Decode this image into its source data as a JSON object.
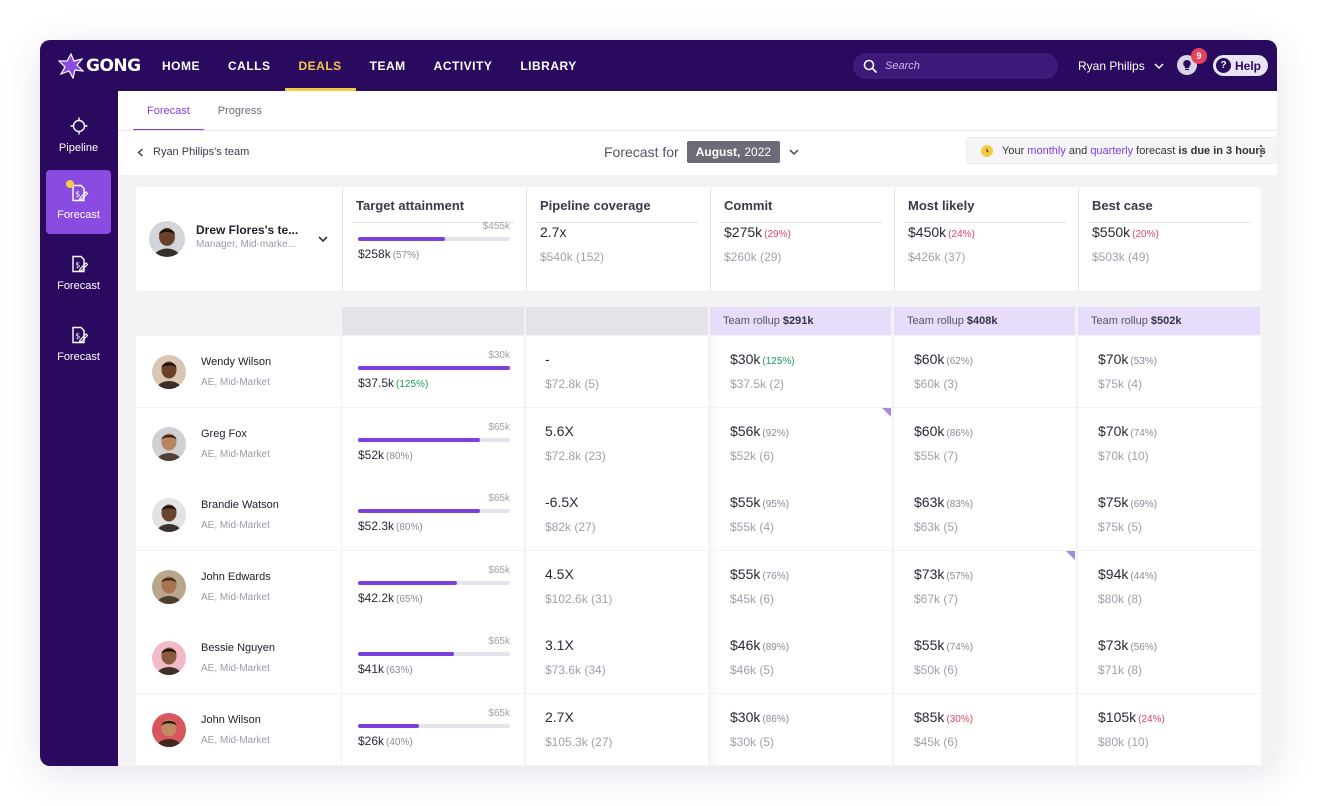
{
  "app": {
    "logo_text": "GONG"
  },
  "nav": {
    "items": [
      {
        "label": "HOME",
        "active": false
      },
      {
        "label": "CALLS",
        "active": false
      },
      {
        "label": "DEALS",
        "active": true
      },
      {
        "label": "TEAM",
        "active": false
      },
      {
        "label": "ACTIVITY",
        "active": false
      },
      {
        "label": "LIBRARY",
        "active": false
      }
    ],
    "search_placeholder": "Search",
    "user_name": "Ryan Philips",
    "notification_count": "9",
    "help_label": "Help"
  },
  "sidebar": {
    "items": [
      {
        "label": "Pipeline",
        "icon": "crosshair-icon",
        "active": false
      },
      {
        "label": "Forecast",
        "icon": "forecast-icon",
        "active": true
      },
      {
        "label": "Forecast",
        "icon": "forecast-icon",
        "active": false
      },
      {
        "label": "Forecast",
        "icon": "forecast-icon",
        "active": false
      }
    ]
  },
  "tabs": [
    {
      "label": "Forecast",
      "active": true
    },
    {
      "label": "Progress",
      "active": false
    }
  ],
  "header": {
    "back_label": "Ryan Philips's team",
    "forecast_for_label": "Forecast for",
    "period_month": "August,",
    "period_year": "2022",
    "notice": {
      "prefix": "Your",
      "monthly": "monthly",
      "and": "and",
      "quarterly": "quarterly",
      "middle": "forecast",
      "due": "is due in 3 hours"
    }
  },
  "columns": {
    "target": "Target attainment",
    "pipeline": "Pipeline coverage",
    "commit": "Commit",
    "likely": "Most likely",
    "best": "Best case"
  },
  "manager": {
    "name": "Drew Flores's te...",
    "role": "Manager, Mid-marke...",
    "target_label": "$455k",
    "target_value": "$258k",
    "target_pct": "(57%)",
    "target_fill": 0.57,
    "pipeline_value": "2.7x",
    "pipeline_sub": "$540k (152)",
    "commit_value": "$275k",
    "commit_pct": "(29%)",
    "commit_sub": "$260k (29)",
    "likely_value": "$450k",
    "likely_pct": "(24%)",
    "likely_sub": "$426k (37)",
    "best_value": "$550k",
    "best_pct": "(20%)",
    "best_sub": "$503k (49)"
  },
  "rollup": {
    "label": "Team rollup",
    "commit": "$291k",
    "likely": "$408k",
    "best": "$502k"
  },
  "rows": [
    {
      "name": "Wendy Wilson",
      "role": "AE, Mid-Market",
      "target": "$30k",
      "value": "$37.5k",
      "pct": "(125%)",
      "pct_color": "green",
      "fill": 1.0,
      "pipeline": "-",
      "pipeline_sub": "$72.8k (5)",
      "commit": "$30k",
      "commit_pct": "(125%)",
      "commit_pct_color": "green",
      "commit_sub": "$37.5k (2)",
      "likely": "$60k",
      "likely_pct": "(62%)",
      "likely_pct_color": "",
      "likely_sub": "$60k (3)",
      "best": "$70k",
      "best_pct": "(53%)",
      "best_pct_color": "",
      "best_sub": "$75k (4)",
      "skin": "#6b4029",
      "hair": "#1c120c",
      "bg": "#d9c7b3"
    },
    {
      "name": "Greg Fox",
      "role": "AE, Mid-Market",
      "target": "$65k",
      "value": "$52k",
      "pct": "(80%)",
      "pct_color": "",
      "fill": 0.8,
      "pipeline": "5.6X",
      "pipeline_sub": "$72.8k (23)",
      "commit": "$56k",
      "commit_pct": "(92%)",
      "commit_pct_color": "",
      "commit_sub": "$52k (6)",
      "likely": "$60k",
      "likely_pct": "(86%)",
      "likely_pct_color": "",
      "likely_sub": "$55k (7)",
      "best": "$70k",
      "best_pct": "(74%)",
      "best_pct_color": "",
      "best_sub": "$70k (10)",
      "skin": "#b7865f",
      "hair": "#3b2618",
      "bg": "#cfcfd4"
    },
    {
      "name": "Brandie Watson",
      "role": "AE, Mid-Market",
      "target": "$65k",
      "value": "$52.3k",
      "pct": "(80%)",
      "pct_color": "",
      "fill": 0.8,
      "pipeline": "-6.5X",
      "pipeline_sub": "$82k (27)",
      "commit": "$55k",
      "commit_pct": "(95%)",
      "commit_pct_color": "",
      "commit_sub": "$55k (4)",
      "likely": "$63k",
      "likely_pct": "(83%)",
      "likely_pct_color": "",
      "likely_sub": "$63k (5)",
      "best": "$75k",
      "best_pct": "(69%)",
      "best_pct_color": "",
      "best_sub": "$75k (5)",
      "skin": "#6a452d",
      "hair": "#1a1410",
      "bg": "#e3e3e6"
    },
    {
      "name": "John Edwards",
      "role": "AE, Mid-Market",
      "target": "$65k",
      "value": "$42.2k",
      "pct": "(65%)",
      "pct_color": "",
      "fill": 0.65,
      "pipeline": "4.5X",
      "pipeline_sub": "$102.6k (31)",
      "commit": "$55k",
      "commit_pct": "(76%)",
      "commit_pct_color": "",
      "commit_sub": "$45k (6)",
      "likely": "$73k",
      "likely_pct": "(57%)",
      "likely_pct_color": "",
      "likely_sub": "$67k (7)",
      "best": "$94k",
      "best_pct": "(44%)",
      "best_pct_color": "",
      "best_sub": "$80k (8)",
      "skin": "#a9744e",
      "hair": "#3a2a1c",
      "bg": "#b8a78c"
    },
    {
      "name": "Bessie Nguyen",
      "role": "AE, Mid-Market",
      "target": "$65k",
      "value": "$41k",
      "pct": "(63%)",
      "pct_color": "",
      "fill": 0.63,
      "pipeline": "3.1X",
      "pipeline_sub": "$73.6k (34)",
      "commit": "$46k",
      "commit_pct": "(89%)",
      "commit_pct_color": "",
      "commit_sub": "$46k (5)",
      "likely": "$55k",
      "likely_pct": "(74%)",
      "likely_pct_color": "",
      "likely_sub": "$50k (6)",
      "best": "$73k",
      "best_pct": "(56%)",
      "best_pct_color": "",
      "best_sub": "$71k (8)",
      "skin": "#8a5a3c",
      "hair": "#20160f",
      "bg": "#f2b9c8"
    },
    {
      "name": "John Wilson",
      "role": "AE, Mid-Market",
      "target": "$65k",
      "value": "$26k",
      "pct": "(40%)",
      "pct_color": "",
      "fill": 0.4,
      "pipeline": "2.7X",
      "pipeline_sub": "$105.3k (27)",
      "commit": "$30k",
      "commit_pct": "(86%)",
      "commit_pct_color": "",
      "commit_sub": "$30k (5)",
      "likely": "$85k",
      "likely_pct": "(30%)",
      "likely_pct_color": "red",
      "likely_sub": "$45k (6)",
      "best": "$105k",
      "best_pct": "(24%)",
      "best_pct_color": "red",
      "best_sub": "$80k (10)",
      "skin": "#c08a62",
      "hair": "#2b1d12",
      "bg": "#d8575f"
    }
  ],
  "colors": {
    "accent": "#7b3fe0",
    "nav_bg": "#2a0a5e",
    "highlight": "#f6c945",
    "negative": "#e2465f",
    "positive": "#1f9d55"
  }
}
